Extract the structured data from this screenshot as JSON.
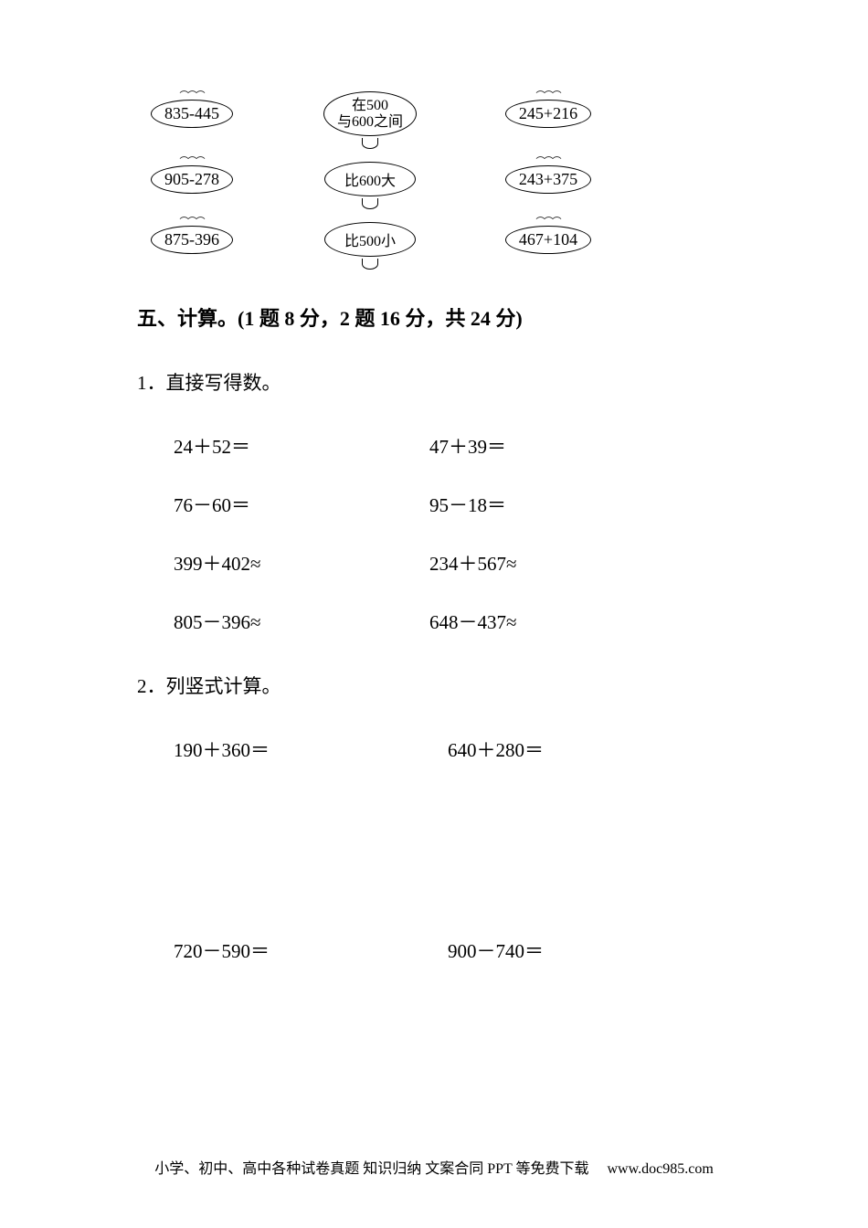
{
  "diagram": {
    "rows": [
      {
        "left": "835-445",
        "mid": "在500\n与600之间",
        "right": "245+216",
        "mid_multiline": true
      },
      {
        "left": "905-278",
        "mid": "比600大",
        "right": "243+375",
        "mid_multiline": false
      },
      {
        "left": "875-396",
        "mid": "比500小",
        "right": "467+104",
        "mid_multiline": false
      }
    ],
    "bubble_border_color": "#000000",
    "bubble_text_fontsize": 18,
    "cloud_text_fontsize": 16,
    "deco_top": "⌒⌒⌒",
    "deco_bottom": "∿"
  },
  "section_heading": "五、计算。(1 题 8 分，2 题 16 分，共 24 分)",
  "q1": {
    "title": "1．直接写得数。",
    "items": [
      "24＋52＝",
      "47＋39＝",
      "76－60＝",
      "95－18＝",
      "399＋402≈",
      "234＋567≈",
      "805－396≈",
      "648－437≈"
    ]
  },
  "q2": {
    "title": "2．列竖式计算。",
    "items": [
      "190＋360＝",
      "640＋280＝",
      "720－590＝",
      "900－740＝"
    ]
  },
  "footer": {
    "text": "小学、初中、高中各种试卷真题 知识归纳 文案合同 PPT 等免费下载",
    "url": "www.doc985.com"
  },
  "style": {
    "page_bg": "#ffffff",
    "text_color": "#000000",
    "heading_fontsize": 22,
    "body_fontsize": 21,
    "footer_fontsize": 16
  }
}
